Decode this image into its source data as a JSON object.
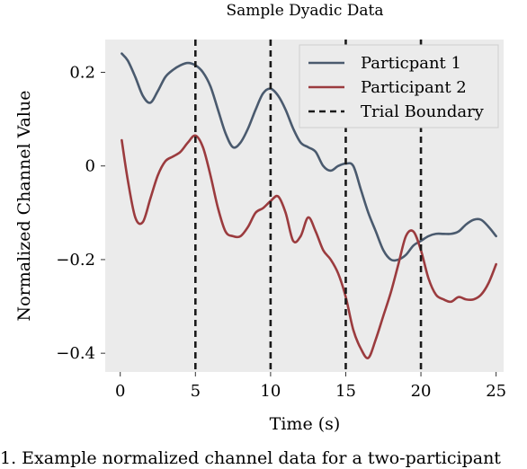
{
  "chart_data": {
    "type": "line",
    "title": "Sample Dyadic Data",
    "xlabel": "Time (s)",
    "ylabel": "Normalized Channel Value",
    "xlim": [
      -1,
      25.5
    ],
    "ylim": [
      -0.44,
      0.27
    ],
    "x_ticks": [
      0,
      5,
      10,
      15,
      20,
      25
    ],
    "x_tick_labels": [
      "0",
      "5",
      "10",
      "15",
      "20",
      "25"
    ],
    "y_ticks": [
      0.2,
      0,
      -0.2,
      -0.4
    ],
    "y_tick_labels": [
      "0.2",
      "0",
      "−0.2",
      "−0.4"
    ],
    "grid": false,
    "legend_position": "top-right",
    "series": [
      {
        "name": "Particpant 1",
        "color": "#4a5a6e",
        "x": [
          0.1,
          0.5,
          1.0,
          1.5,
          2.0,
          2.5,
          3.0,
          3.5,
          4.0,
          4.5,
          5.0,
          5.5,
          6.0,
          6.5,
          7.0,
          7.5,
          8.0,
          8.5,
          9.0,
          9.5,
          10.0,
          10.5,
          11.0,
          11.5,
          12.0,
          12.5,
          13.0,
          13.5,
          14.0,
          14.5,
          15.0,
          15.5,
          16.0,
          16.5,
          17.0,
          17.5,
          18.0,
          18.5,
          19.0,
          19.5,
          20.0,
          20.5,
          21.0,
          21.5,
          22.0,
          22.5,
          23.0,
          23.5,
          24.0,
          24.5,
          25.0
        ],
        "y": [
          0.24,
          0.225,
          0.19,
          0.15,
          0.135,
          0.16,
          0.19,
          0.205,
          0.215,
          0.22,
          0.215,
          0.2,
          0.17,
          0.12,
          0.07,
          0.04,
          0.05,
          0.08,
          0.12,
          0.155,
          0.165,
          0.15,
          0.12,
          0.08,
          0.05,
          0.04,
          0.03,
          0.0,
          -0.01,
          0.0,
          0.005,
          0.0,
          -0.05,
          -0.1,
          -0.14,
          -0.18,
          -0.2,
          -0.2,
          -0.19,
          -0.17,
          -0.16,
          -0.15,
          -0.145,
          -0.145,
          -0.145,
          -0.14,
          -0.125,
          -0.115,
          -0.115,
          -0.13,
          -0.15
        ]
      },
      {
        "name": "Participant 2",
        "color": "#9b3b3e",
        "x": [
          0.1,
          0.5,
          1.0,
          1.5,
          2.0,
          2.5,
          3.0,
          3.5,
          4.0,
          4.5,
          5.0,
          5.5,
          6.0,
          6.5,
          7.0,
          7.5,
          8.0,
          8.5,
          9.0,
          9.5,
          10.0,
          10.5,
          11.0,
          11.5,
          12.0,
          12.5,
          13.0,
          13.5,
          14.0,
          14.5,
          15.0,
          15.5,
          16.0,
          16.5,
          17.0,
          17.5,
          18.0,
          18.5,
          19.0,
          19.5,
          20.0,
          20.5,
          21.0,
          21.5,
          22.0,
          22.5,
          23.0,
          23.5,
          24.0,
          24.5,
          25.0
        ],
        "y": [
          0.055,
          -0.03,
          -0.11,
          -0.12,
          -0.07,
          -0.02,
          0.01,
          0.02,
          0.03,
          0.05,
          0.065,
          0.04,
          -0.02,
          -0.09,
          -0.14,
          -0.15,
          -0.15,
          -0.13,
          -0.1,
          -0.09,
          -0.075,
          -0.065,
          -0.1,
          -0.16,
          -0.15,
          -0.11,
          -0.14,
          -0.18,
          -0.2,
          -0.23,
          -0.28,
          -0.35,
          -0.39,
          -0.41,
          -0.37,
          -0.32,
          -0.27,
          -0.21,
          -0.15,
          -0.14,
          -0.18,
          -0.24,
          -0.275,
          -0.285,
          -0.29,
          -0.28,
          -0.285,
          -0.285,
          -0.275,
          -0.25,
          -0.21
        ]
      },
      {
        "name": "Trial Boundary",
        "color": "#1a1a1a",
        "style": "dashed",
        "vlines": [
          5,
          10,
          15,
          20
        ]
      }
    ]
  },
  "caption": "1. Example normalized channel data for a two-participant"
}
